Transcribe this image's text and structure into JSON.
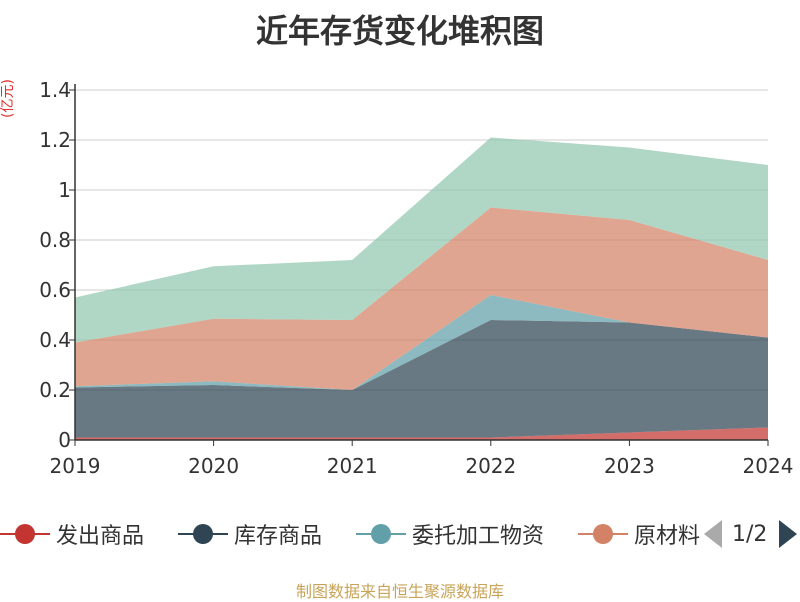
{
  "title": "近年存货变化堆积图",
  "unit": "(亿元)",
  "footer": "制图数据来自恒生聚源数据库",
  "pager": {
    "text": "1/2"
  },
  "chart_data": {
    "type": "area",
    "stacked": true,
    "x": [
      "2019",
      "2020",
      "2021",
      "2022",
      "2023",
      "2024"
    ],
    "ylim": [
      0,
      1.4
    ],
    "yticks": [
      "0",
      "0.2",
      "0.4",
      "0.6",
      "0.8",
      "1",
      "1.2",
      "1.4"
    ],
    "grid": true,
    "legend_position": "bottom",
    "series": [
      {
        "name": "发出商品",
        "color": "#c23531",
        "values": [
          0.01,
          0.01,
          0.01,
          0.01,
          0.03,
          0.05
        ]
      },
      {
        "name": "库存商品",
        "color": "#2f4554",
        "values": [
          0.2,
          0.21,
          0.19,
          0.47,
          0.44,
          0.36
        ]
      },
      {
        "name": "委托加工物资",
        "color": "#61a0a8",
        "values": [
          0.005,
          0.015,
          0.0,
          0.1,
          0.0,
          0.0
        ]
      },
      {
        "name": "原材料",
        "color": "#d48265",
        "values": [
          0.175,
          0.25,
          0.28,
          0.35,
          0.41,
          0.31
        ]
      },
      {
        "name": "",
        "color": "#91c7ae",
        "values": [
          0.18,
          0.21,
          0.24,
          0.28,
          0.29,
          0.38
        ]
      }
    ]
  }
}
